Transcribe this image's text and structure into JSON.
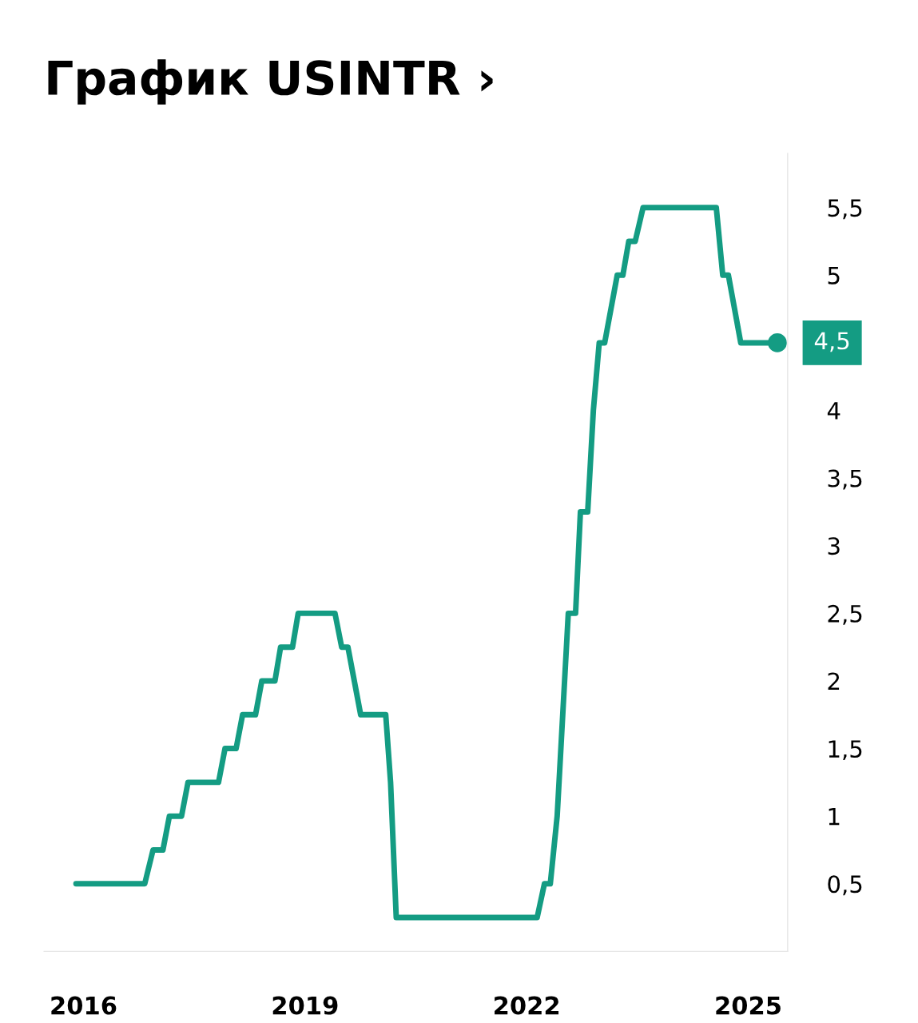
{
  "chart_data": {
    "type": "line",
    "title": "График USINTR ›",
    "x": [
      "2015-11-25",
      "2016-10-30",
      "2016-12-10",
      "2017-01-28",
      "2017-03-01",
      "2017-04-30",
      "2017-06-01",
      "2017-10-30",
      "2017-12-01",
      "2018-01-25",
      "2018-02-26",
      "2018-05-01",
      "2018-06-01",
      "2018-08-05",
      "2018-09-02",
      "2018-10-31",
      "2018-11-28",
      "2019-05-29",
      "2019-07-01",
      "2019-08-01",
      "2019-10-03",
      "2020-02-04",
      "2020-02-28",
      "2020-03-27",
      "2022-02-22",
      "2022-03-30",
      "2022-04-28",
      "2022-06-01",
      "2022-07-26",
      "2022-08-31",
      "2022-09-24",
      "2022-10-30",
      "2022-11-27",
      "2022-12-26",
      "2023-01-22",
      "2023-03-25",
      "2023-04-22",
      "2023-05-21",
      "2023-06-22",
      "2023-07-31",
      "2024-07-27",
      "2024-08-28",
      "2024-09-25",
      "2024-11-25",
      "2025-05-25"
    ],
    "series": [
      {
        "color": "#149c83",
        "values": [
          0.5,
          0.5,
          0.75,
          0.75,
          1.0,
          1.0,
          1.25,
          1.25,
          1.5,
          1.5,
          1.75,
          1.75,
          2.0,
          2.0,
          2.25,
          2.25,
          2.5,
          2.5,
          2.25,
          2.25,
          1.75,
          1.75,
          1.25,
          0.25,
          0.25,
          0.5,
          0.5,
          1.0,
          2.5,
          2.5,
          3.25,
          3.25,
          4.0,
          4.5,
          4.5,
          5.0,
          5.0,
          5.25,
          5.25,
          5.5,
          5.5,
          5.0,
          5.0,
          4.5,
          4.5
        ]
      }
    ],
    "xlim": [
      "2015-06-20",
      "2025-07-15"
    ],
    "xticks": [
      "2016",
      "2019",
      "2022",
      "2025"
    ],
    "ylim": [
      0,
      5.9
    ],
    "yticks": [
      {
        "value": 0.5,
        "label": "0,5"
      },
      {
        "value": 1,
        "label": "1"
      },
      {
        "value": 1.5,
        "label": "1,5"
      },
      {
        "value": 2,
        "label": "2"
      },
      {
        "value": 2.5,
        "label": "2,5"
      },
      {
        "value": 3,
        "label": "3"
      },
      {
        "value": 3.5,
        "label": "3,5"
      },
      {
        "value": 4,
        "label": "4"
      },
      {
        "value": 5,
        "label": "5"
      },
      {
        "value": 5.5,
        "label": "5,5"
      }
    ],
    "annotations": [
      {
        "text": "4,5",
        "x": "2025-05-25",
        "y": 4.5
      }
    ],
    "grid": false,
    "legend": false,
    "line_style": "solid"
  }
}
